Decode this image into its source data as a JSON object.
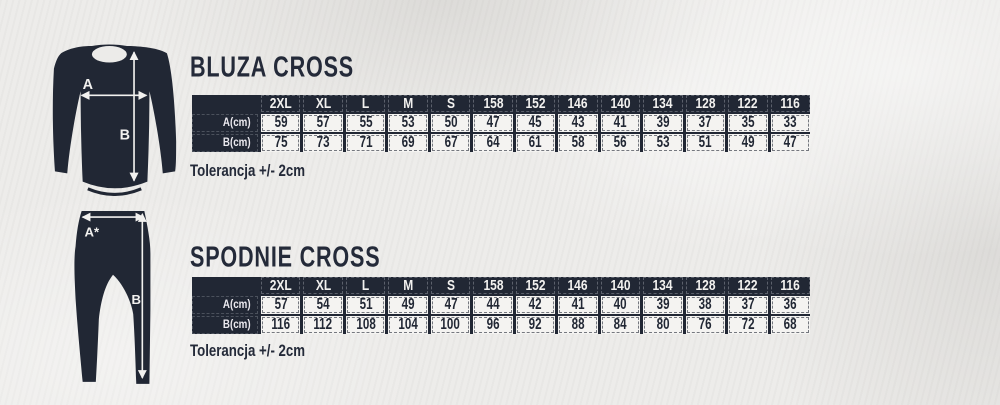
{
  "page": {
    "background_color": "#ecebe9",
    "ink_color": "#212734",
    "cell_color": "#f4f3f1"
  },
  "sections": [
    {
      "title": "BLUZA CROSS",
      "tolerance": "Tolerancja +/- 2cm",
      "diagram": {
        "type": "sweatshirt",
        "width_label": "A",
        "height_label": "B"
      },
      "table": {
        "sizes": [
          "2XL",
          "XL",
          "L",
          "M",
          "S",
          "158",
          "152",
          "146",
          "140",
          "134",
          "128",
          "122",
          "116"
        ],
        "rows": [
          {
            "label": "A(cm)",
            "values": [
              "59",
              "57",
              "55",
              "53",
              "50",
              "47",
              "45",
              "43",
              "41",
              "39",
              "37",
              "35",
              "33"
            ]
          },
          {
            "label": "B(cm)",
            "values": [
              "75",
              "73",
              "71",
              "69",
              "67",
              "64",
              "61",
              "58",
              "56",
              "53",
              "51",
              "49",
              "47"
            ]
          }
        ]
      }
    },
    {
      "title": "SPODNIE CROSS",
      "tolerance": "Tolerancja +/- 2cm",
      "diagram": {
        "type": "pants",
        "width_label": "A*",
        "height_label": "B"
      },
      "table": {
        "sizes": [
          "2XL",
          "XL",
          "L",
          "M",
          "S",
          "158",
          "152",
          "146",
          "140",
          "134",
          "128",
          "122",
          "116"
        ],
        "rows": [
          {
            "label": "A(cm)",
            "values": [
              "57",
              "54",
              "51",
              "49",
              "47",
              "44",
              "42",
              "41",
              "40",
              "39",
              "38",
              "37",
              "36"
            ]
          },
          {
            "label": "B(cm)",
            "values": [
              "116",
              "112",
              "108",
              "104",
              "100",
              "96",
              "92",
              "88",
              "84",
              "80",
              "76",
              "72",
              "68"
            ]
          }
        ]
      }
    }
  ]
}
